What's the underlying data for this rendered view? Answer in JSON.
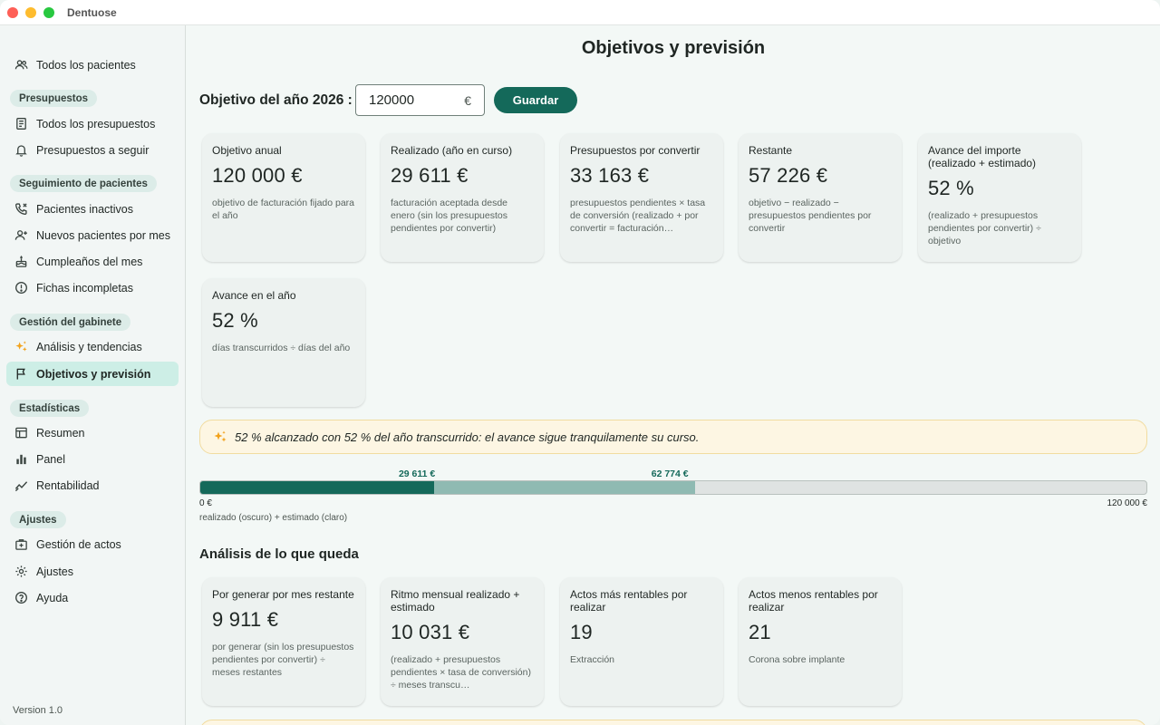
{
  "window": {
    "title": "Dentuose"
  },
  "sidebar": {
    "top_item": {
      "label": "Todos los pacientes",
      "icon": "users-icon"
    },
    "sections": [
      {
        "title": "Presupuestos",
        "items": [
          {
            "label": "Todos los presupuestos",
            "icon": "document-icon"
          },
          {
            "label": "Presupuestos a seguir",
            "icon": "bell-icon"
          }
        ]
      },
      {
        "title": "Seguimiento de pacientes",
        "items": [
          {
            "label": "Pacientes inactivos",
            "icon": "phone-icon"
          },
          {
            "label": "Nuevos pacientes por mes",
            "icon": "user-plus-icon"
          },
          {
            "label": "Cumpleaños del mes",
            "icon": "cake-icon"
          },
          {
            "label": "Fichas incompletas",
            "icon": "alert-circle-icon"
          }
        ]
      },
      {
        "title": "Gestión del gabinete",
        "items": [
          {
            "label": "Análisis y tendencias",
            "icon": "sparkle-icon"
          },
          {
            "label": "Objetivos y previsión",
            "icon": "flag-icon",
            "active": true
          }
        ]
      },
      {
        "title": "Estadísticas",
        "items": [
          {
            "label": "Resumen",
            "icon": "table-icon"
          },
          {
            "label": "Panel",
            "icon": "bar-chart-icon"
          },
          {
            "label": "Rentabilidad",
            "icon": "trend-icon"
          }
        ]
      },
      {
        "title": "Ajustes",
        "items": [
          {
            "label": "Gestión de actos",
            "icon": "medical-case-icon"
          },
          {
            "label": "Ajustes",
            "icon": "gear-icon"
          },
          {
            "label": "Ayuda",
            "icon": "help-icon"
          }
        ]
      }
    ],
    "version": "Version 1.0"
  },
  "main": {
    "title": "Objetivos y previsión",
    "goal": {
      "label": "Objetivo del año 2026 :",
      "value": "120000",
      "currency": "€",
      "save_label": "Guardar"
    },
    "cards": [
      {
        "title": "Objetivo anual",
        "value": "120 000 €",
        "desc": "objetivo de facturación fijado para el año"
      },
      {
        "title": "Realizado (año en curso)",
        "value": "29 611 €",
        "desc": "facturación aceptada desde enero (sin los presupuestos pendientes por convertir)"
      },
      {
        "title": "Presupuestos por convertir",
        "value": "33 163 €",
        "desc": "presupuestos pendientes × tasa de conversión (realizado + por convertir = facturación…"
      },
      {
        "title": "Restante",
        "value": "57 226 €",
        "desc": "objetivo − realizado − presupuestos pendientes por convertir"
      },
      {
        "title": "Avance del importe (realizado + estimado)",
        "value": "52 %",
        "desc": "(realizado + presupuestos pendientes por convertir) ÷ objetivo"
      },
      {
        "title": "Avance en el año",
        "value": "52 %",
        "desc": "días transcurridos ÷ días del año"
      }
    ],
    "insight": "52 % alcanzado con 52 % del año transcurrido: el avance sigue tranquilamente su curso.",
    "progress": {
      "realized": 29611,
      "estimated_total": 62774,
      "target": 120000,
      "realized_label": "29 611 €",
      "estimated_label": "62 774 €",
      "min_label": "0 €",
      "max_label": "120 000 €",
      "note": "realizado (oscuro) + estimado (claro)",
      "colors": {
        "realized": "#14695a",
        "estimated": "#8fbab2",
        "track": "#dfe3e2"
      }
    },
    "analysis": {
      "title": "Análisis de lo que queda",
      "cards": [
        {
          "title": "Por generar por mes restante",
          "value": "9 911 €",
          "desc": "por generar (sin los presupuestos pendientes por convertir) ÷ meses restantes"
        },
        {
          "title": "Ritmo mensual realizado + estimado",
          "value": "10 031 €",
          "desc": "(realizado + presupuestos pendientes × tasa de conversión) ÷ meses transcu…"
        },
        {
          "title": "Actos más rentables por realizar",
          "value": "19",
          "desc": "Extracción"
        },
        {
          "title": "Actos menos rentables por realizar",
          "value": "21",
          "desc": "Corona sobre implante"
        }
      ]
    }
  }
}
